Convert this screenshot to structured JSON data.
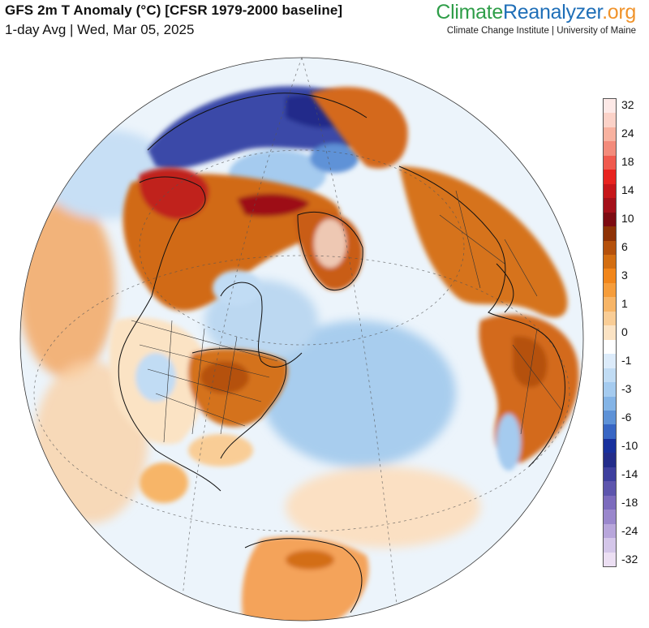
{
  "header": {
    "title": "GFS 2m T Anomaly (°C) [CFSR 1979-2000 baseline]",
    "subtitle": "1-day Avg | Wed, Mar 05, 2025"
  },
  "brand": {
    "part1": "Climate",
    "part2": "Reanalyzer",
    "part3": ".org",
    "sub": "Climate Change Institute | University of Maine"
  },
  "legend": {
    "colors": [
      "#fde9e7",
      "#fbd2c8",
      "#f8b2a0",
      "#f38b7b",
      "#f05a4e",
      "#e8231f",
      "#c6161a",
      "#a4101a",
      "#7d0b12",
      "#8e3206",
      "#b5510c",
      "#d36e12",
      "#f1861b",
      "#f69d3b",
      "#f7b567",
      "#f9cd96",
      "#fbe3c4",
      "#ffffff",
      "#dcebfa",
      "#c1dcf4",
      "#a5cbef",
      "#84b4e6",
      "#5e92d7",
      "#3866c4",
      "#18309d",
      "#232c8a",
      "#3e3f9e",
      "#5d55ad",
      "#7c6bbd",
      "#9a87cc",
      "#b8a6db",
      "#d4c6e9",
      "#ecdff3"
    ],
    "labels": [
      "32",
      "24",
      "18",
      "14",
      "10",
      "6",
      "3",
      "1",
      "0",
      "-1",
      "-3",
      "-6",
      "-10",
      "-14",
      "-18",
      "-24",
      "-32"
    ]
  },
  "map": {
    "projection": "orthographic",
    "ocean_color": "#ecf4fb",
    "regions": [
      {
        "name": "canada-west-warm",
        "color": "#d16a16"
      },
      {
        "name": "alaska-hot",
        "color": "#c0231c"
      },
      {
        "name": "greenland-warm",
        "color": "#c95d14"
      },
      {
        "name": "eastern-us-warm",
        "color": "#d4721c"
      },
      {
        "name": "europe-warm",
        "color": "#d6731d"
      },
      {
        "name": "africa-warm",
        "color": "#d36b1a"
      },
      {
        "name": "siberia-cold",
        "color": "#3a48a8"
      },
      {
        "name": "atlantic-cool",
        "color": "#a8cdee"
      },
      {
        "name": "canada-arctic-cool",
        "color": "#bcd8f1"
      }
    ]
  }
}
